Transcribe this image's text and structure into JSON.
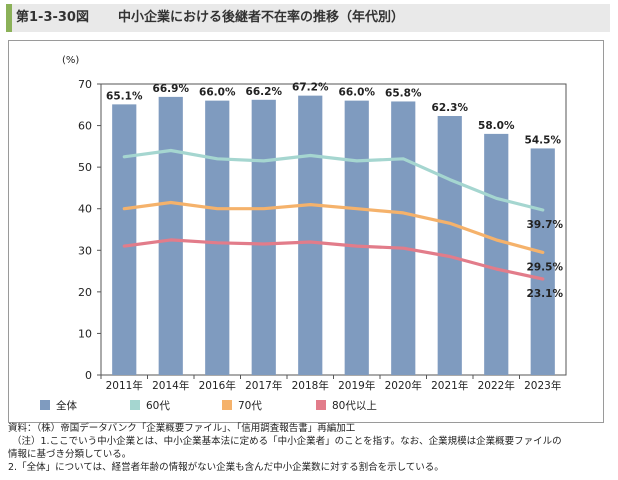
{
  "header": {
    "figure_number": "第1-3-30図",
    "title": "中小企業における後継者不在率の推移（年代別）"
  },
  "chart_data": {
    "type": "bar",
    "y_unit_label": "(%)",
    "ylim": [
      0,
      70
    ],
    "yticks": [
      0,
      10,
      20,
      30,
      40,
      50,
      60,
      70
    ],
    "categories": [
      "2011年",
      "2014年",
      "2016年",
      "2017年",
      "2018年",
      "2019年",
      "2020年",
      "2021年",
      "2022年",
      "2023年"
    ],
    "series": [
      {
        "name": "全体",
        "type": "bar",
        "color": "#7f9bbf",
        "values": [
          65.1,
          66.9,
          66.0,
          66.2,
          67.2,
          66.0,
          65.8,
          62.3,
          58.0,
          54.5
        ],
        "labels": [
          "65.1%",
          "66.9%",
          "66.0%",
          "66.2%",
          "67.2%",
          "66.0%",
          "65.8%",
          "62.3%",
          "58.0%",
          "54.5%"
        ]
      },
      {
        "name": "60代",
        "type": "line",
        "color": "#a5d6d0",
        "values": [
          52.5,
          54.0,
          52.0,
          51.5,
          52.8,
          51.5,
          52.0,
          47.0,
          42.5,
          39.7
        ],
        "end_label": "39.7%"
      },
      {
        "name": "70代",
        "type": "line",
        "color": "#f5b26b",
        "values": [
          40.0,
          41.5,
          40.0,
          40.0,
          41.0,
          40.0,
          39.0,
          36.5,
          32.5,
          29.5
        ],
        "end_label": "29.5%"
      },
      {
        "name": "80代以上",
        "type": "line",
        "color": "#e27c8a",
        "values": [
          31.0,
          32.5,
          31.8,
          31.5,
          32.0,
          31.0,
          30.5,
          28.5,
          25.5,
          23.1
        ],
        "end_label": "23.1%"
      }
    ],
    "legend_position": "bottom"
  },
  "notes": {
    "source": "資料：（株）帝国データバンク「企業概要ファイル」、「信用調査報告書」再編加工",
    "note1a": "（注）1.ここでいう中小企業とは、中小企業基本法に定める「中小企業者」のことを指す。なお、企業規模は企業概要ファイルの",
    "note1b": "情報に基づき分類している。",
    "note2": "2.「全体」については、経営者年齢の情報がない企業も含んだ中小企業数に対する割合を示している。"
  }
}
